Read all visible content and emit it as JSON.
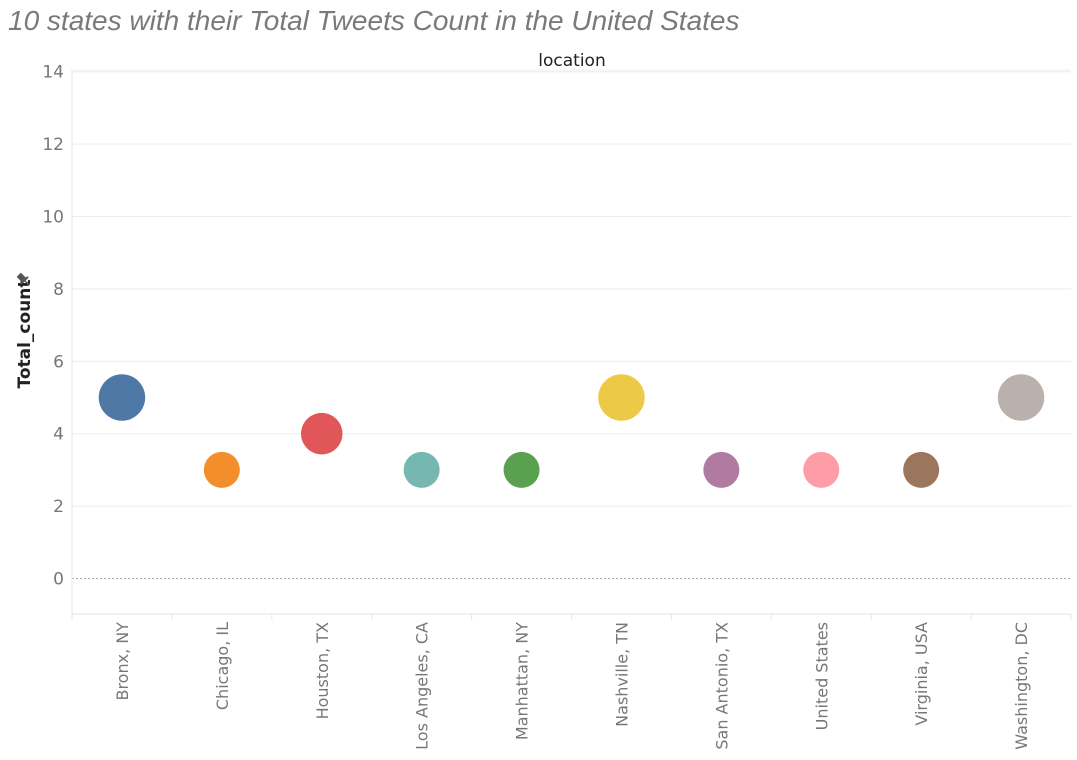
{
  "chart_data": {
    "type": "scatter",
    "title": "10 states with their Total Tweets Count in the United States",
    "xlabel": "location",
    "ylabel": "Total_count",
    "ylabel_icon": "pin-icon",
    "ylim": [
      -1,
      14.4
    ],
    "yticks": [
      "0",
      "2",
      "4",
      "6",
      "8",
      "10",
      "12",
      "14"
    ],
    "categories": [
      "Bronx, NY",
      "Chicago, IL",
      "Houston, TX",
      "Los Angeles, CA",
      "Manhattan, NY",
      "Nashville, TN",
      "San Antonio, TX",
      "United States",
      "Virginia, USA",
      "Washington, DC"
    ],
    "values": [
      5,
      3,
      4,
      3,
      3,
      5,
      3,
      3,
      3,
      5
    ],
    "colors": [
      "#4e79a7",
      "#f28e2b",
      "#e15759",
      "#76b7b2",
      "#59a14f",
      "#edc948",
      "#b07aa1",
      "#ff9da7",
      "#9c755f",
      "#bab0ac"
    ],
    "size_encodes": "Total_count",
    "grid": true,
    "legend": "none"
  }
}
